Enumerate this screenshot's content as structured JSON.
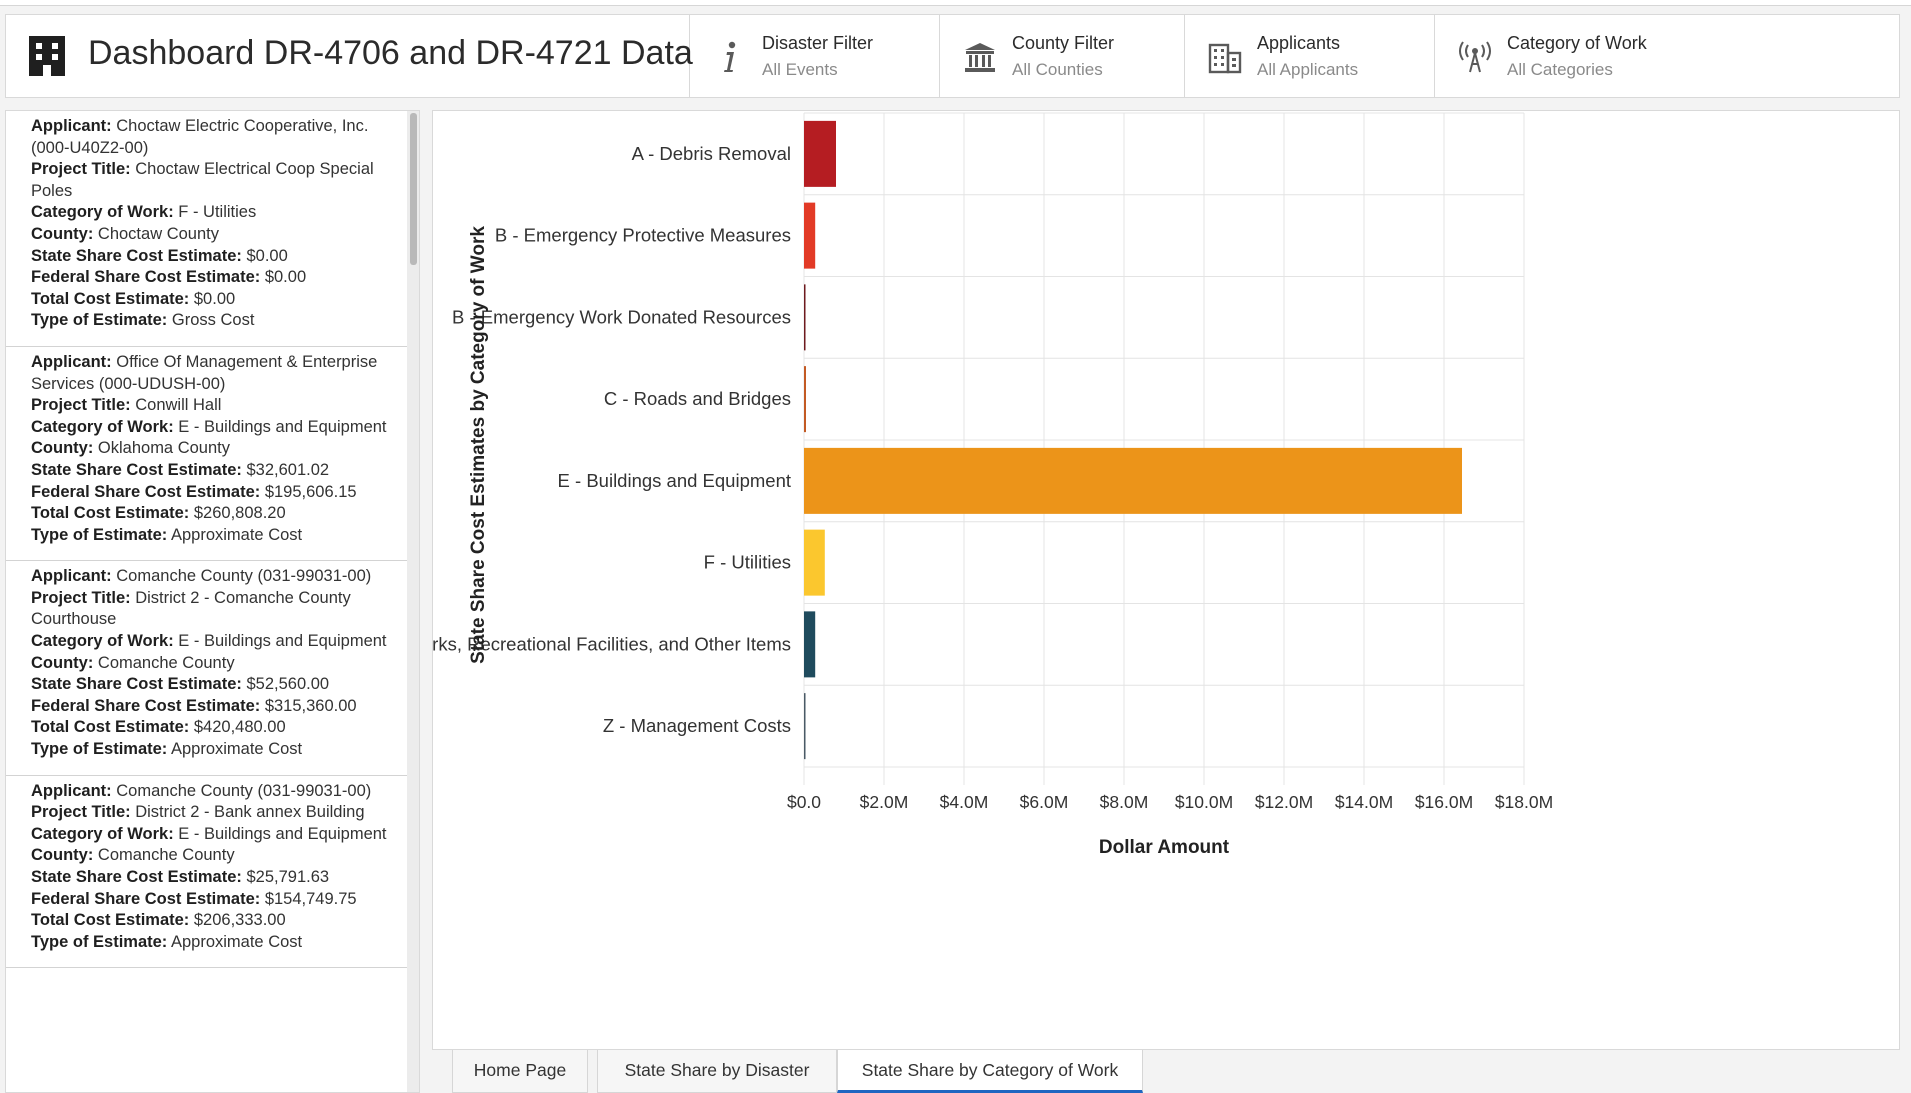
{
  "header": {
    "title": "Dashboard DR-4706 and DR-4721 Data",
    "filters": [
      {
        "label": "Disaster Filter",
        "value": "All Events",
        "icon": "info-icon"
      },
      {
        "label": "County Filter",
        "value": "All Counties",
        "icon": "courthouse-icon"
      },
      {
        "label": "Applicants",
        "value": "All Applicants",
        "icon": "buildings-icon"
      },
      {
        "label": "Category of Work",
        "value": "All Categories",
        "icon": "antenna-icon"
      }
    ]
  },
  "sidebar": {
    "cards": [
      {
        "fields": [
          {
            "k": "Applicant:",
            "v": "Choctaw Electric Cooperative, Inc. (000-U40Z2-00)"
          },
          {
            "k": "Project Title:",
            "v": "Choctaw Electrical Coop Special Poles"
          },
          {
            "k": "Category of Work:",
            "v": "F - Utilities"
          },
          {
            "k": "County:",
            "v": "Choctaw County"
          },
          {
            "k": "State Share Cost Estimate:",
            "v": "$0.00"
          },
          {
            "k": "Federal Share Cost Estimate:",
            "v": "$0.00"
          },
          {
            "k": "Total Cost Estimate:",
            "v": "$0.00"
          },
          {
            "k": "Type of Estimate:",
            "v": "Gross Cost"
          }
        ]
      },
      {
        "fields": [
          {
            "k": "Applicant:",
            "v": "Office Of Management & Enterprise Services (000-UDUSH-00)"
          },
          {
            "k": "Project Title:",
            "v": "Conwill Hall"
          },
          {
            "k": "Category of Work:",
            "v": "E - Buildings and Equipment"
          },
          {
            "k": "County:",
            "v": "Oklahoma County"
          },
          {
            "k": "State Share Cost Estimate:",
            "v": "$32,601.02"
          },
          {
            "k": "Federal Share Cost Estimate:",
            "v": "$195,606.15"
          },
          {
            "k": "Total Cost Estimate:",
            "v": "$260,808.20"
          },
          {
            "k": "Type of Estimate:",
            "v": "Approximate Cost"
          }
        ]
      },
      {
        "fields": [
          {
            "k": "Applicant:",
            "v": "Comanche County (031-99031-00)"
          },
          {
            "k": "Project Title:",
            "v": "District 2 - Comanche County Courthouse"
          },
          {
            "k": "Category of Work:",
            "v": "E - Buildings and Equipment"
          },
          {
            "k": "County:",
            "v": "Comanche County"
          },
          {
            "k": "State Share Cost Estimate:",
            "v": "$52,560.00"
          },
          {
            "k": "Federal Share Cost Estimate:",
            "v": "$315,360.00"
          },
          {
            "k": "Total Cost Estimate:",
            "v": "$420,480.00"
          },
          {
            "k": "Type of Estimate:",
            "v": "Approximate Cost"
          }
        ]
      },
      {
        "fields": [
          {
            "k": "Applicant:",
            "v": "Comanche County (031-99031-00)"
          },
          {
            "k": "Project Title:",
            "v": "District 2 - Bank annex Building"
          },
          {
            "k": "Category of Work:",
            "v": "E - Buildings and Equipment"
          },
          {
            "k": "County:",
            "v": "Comanche County"
          },
          {
            "k": "State Share Cost Estimate:",
            "v": "$25,791.63"
          },
          {
            "k": "Federal Share Cost Estimate:",
            "v": "$154,749.75"
          },
          {
            "k": "Total Cost Estimate:",
            "v": "$206,333.00"
          },
          {
            "k": "Type of Estimate:",
            "v": "Approximate Cost"
          }
        ]
      }
    ]
  },
  "tabs": [
    {
      "label": "Home Page",
      "active": false
    },
    {
      "label": "State Share by Disaster",
      "active": false
    },
    {
      "label": "State Share by Category of Work",
      "active": true
    }
  ],
  "chart_data": {
    "type": "bar",
    "orientation": "horizontal",
    "title": "",
    "xlabel": "Dollar Amount",
    "ylabel": "State Share Cost Estimates by Category of Work",
    "xlim": [
      0,
      18000000
    ],
    "xticks": [
      "$0.0",
      "$2.0M",
      "$4.0M",
      "$6.0M",
      "$8.0M",
      "$10.0M",
      "$12.0M",
      "$14.0M",
      "$16.0M",
      "$18.0M"
    ],
    "grid": true,
    "categories": [
      "A - Debris Removal",
      "B - Emergency Protective Measures",
      "B - Emergency Work Donated Resources",
      "C - Roads and Bridges",
      "E - Buildings and Equipment",
      "F - Utilities",
      "G - Parks, Recreational Facilities, and Other Items",
      "Z - Management Costs"
    ],
    "values": [
      800000,
      280000,
      30000,
      50000,
      16450000,
      520000,
      280000,
      10000
    ],
    "colors": [
      "#b51d22",
      "#e23a26",
      "#6e1a1e",
      "#c35a24",
      "#ec9419",
      "#fbc72e",
      "#1f4b5d",
      "#4a5a66"
    ]
  }
}
